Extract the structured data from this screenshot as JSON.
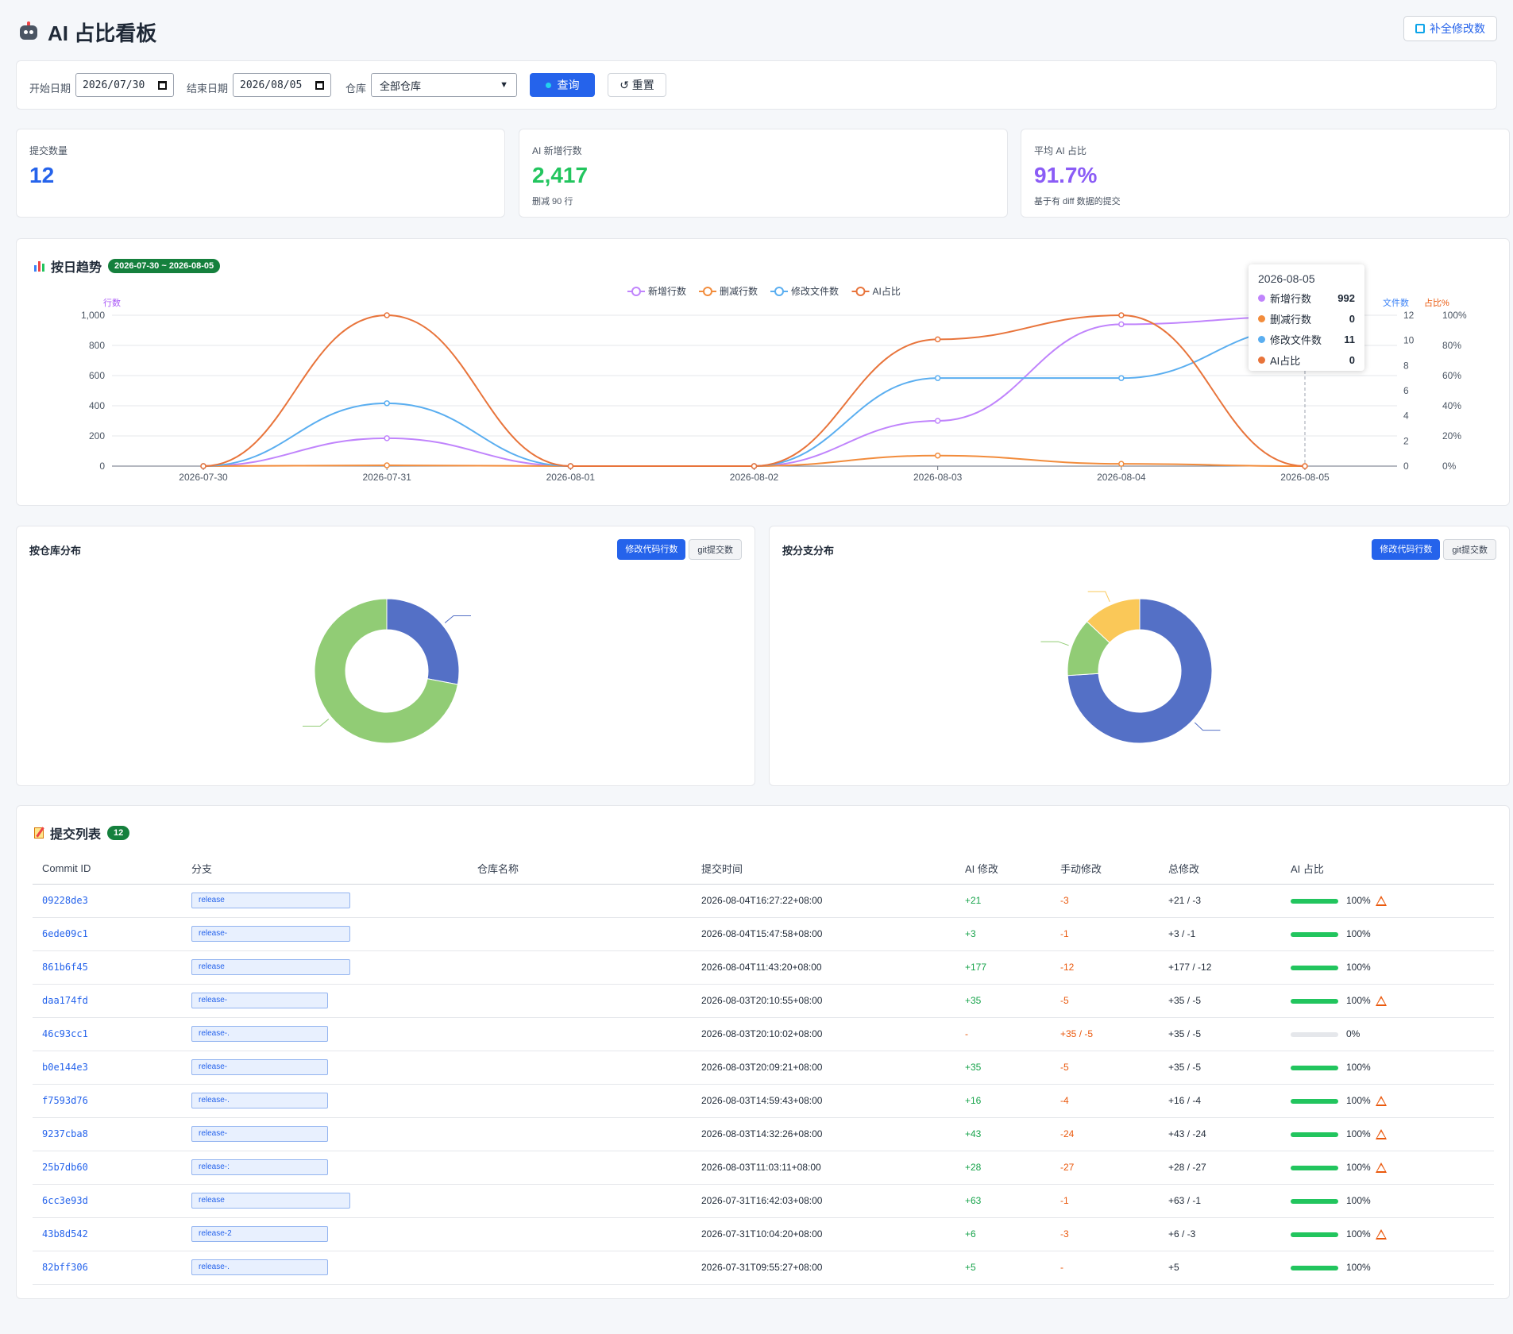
{
  "header": {
    "title": "AI 占比看板",
    "fill_button": "补全修改数"
  },
  "filter": {
    "start_label": "开始日期",
    "start_value": "2026/07/30",
    "end_label": "结束日期",
    "end_value": "2026/08/05",
    "repo_label": "仓库",
    "repo_value": "全部仓库",
    "query_button": "查询",
    "reset_button": "↺ 重置"
  },
  "stats": [
    {
      "label": "提交数量",
      "value": "12",
      "sub": "",
      "color": "#2563eb"
    },
    {
      "label": "AI 新增行数",
      "value": "2,417",
      "sub": "删减 90 行",
      "color": "#22c55e"
    },
    {
      "label": "平均 AI 占比",
      "value": "91.7%",
      "sub": "基于有 diff 数据的提交",
      "color": "#8b5cf6"
    }
  ],
  "trend": {
    "title": "按日趋势",
    "range_badge": "2026-07-30 ~ 2026-08-05",
    "chart_data": {
      "type": "line",
      "categories": [
        "2026-07-30",
        "2026-07-31",
        "2026-08-01",
        "2026-08-02",
        "2026-08-03",
        "2026-08-04",
        "2026-08-05"
      ],
      "series": [
        {
          "name": "新增行数",
          "axis": "lines",
          "color": "#c084fc",
          "values": [
            0,
            185,
            0,
            0,
            300,
            940,
            992
          ]
        },
        {
          "name": "删减行数",
          "axis": "lines",
          "color": "#f28c3c",
          "values": [
            0,
            5,
            0,
            0,
            70,
            15,
            0
          ]
        },
        {
          "name": "修改文件数",
          "axis": "files",
          "color": "#5aaef0",
          "values": [
            0,
            5,
            0,
            0,
            7,
            7,
            11
          ]
        },
        {
          "name": "AI占比",
          "axis": "ratio",
          "color": "#e8743b",
          "values": [
            0,
            100,
            0,
            0,
            84,
            100,
            0
          ]
        }
      ],
      "y_left": {
        "label": "行数",
        "ylim": [
          0,
          1000
        ],
        "ticks": [
          "0",
          "200",
          "400",
          "600",
          "800",
          "1,000"
        ]
      },
      "y_files": {
        "label": "文件数",
        "ylim": [
          0,
          12
        ],
        "ticks": [
          "0",
          "2",
          "4",
          "6",
          "8",
          "10",
          "12"
        ]
      },
      "y_ratio": {
        "label": "占比%",
        "ylim": [
          0,
          100
        ],
        "ticks": [
          "0%",
          "20%",
          "40%",
          "60%",
          "80%",
          "100%"
        ]
      },
      "legend": "top-center",
      "grid": true
    },
    "tooltip": {
      "title": "2026-08-05",
      "rows": [
        {
          "name": "新增行数",
          "value": "992",
          "color": "#c084fc"
        },
        {
          "name": "删减行数",
          "value": "0",
          "color": "#f28c3c"
        },
        {
          "name": "修改文件数",
          "value": "11",
          "color": "#5aaef0"
        },
        {
          "name": "AI占比",
          "value": "0",
          "color": "#e8743b"
        }
      ]
    }
  },
  "repo_dist": {
    "title": "按仓库分布",
    "seg_on": "修改代码行数",
    "seg_off": "git提交数",
    "chart_data": {
      "type": "pie",
      "slices": [
        {
          "value": 28,
          "color": "#5470c6"
        },
        {
          "value": 72,
          "color": "#91cc75"
        }
      ]
    }
  },
  "branch_dist": {
    "title": "按分支分布",
    "seg_on": "修改代码行数",
    "seg_off": "git提交数",
    "chart_data": {
      "type": "pie",
      "slices": [
        {
          "value": 74,
          "color": "#5470c6"
        },
        {
          "value": 13,
          "color": "#91cc75"
        },
        {
          "value": 13,
          "color": "#fac858"
        }
      ]
    }
  },
  "commits": {
    "title": "提交列表",
    "count": "12",
    "columns": [
      "Commit ID",
      "分支",
      "仓库名称",
      "提交时间",
      "AI 修改",
      "手动修改",
      "总修改",
      "AI 占比"
    ],
    "rows": [
      {
        "id": "09228de3",
        "branch": "release",
        "time": "2026-08-04T16:27:22+08:00",
        "ai": "+21",
        "manual": "-3",
        "total": "+21 / -3",
        "ratio": "100%",
        "warn": true,
        "w": 200
      },
      {
        "id": "6ede09c1",
        "branch": "release-",
        "time": "2026-08-04T15:47:58+08:00",
        "ai": "+3",
        "manual": "-1",
        "total": "+3 / -1",
        "ratio": "100%",
        "warn": false,
        "w": 200
      },
      {
        "id": "861b6f45",
        "branch": "release",
        "time": "2026-08-04T11:43:20+08:00",
        "ai": "+177",
        "manual": "-12",
        "total": "+177 / -12",
        "ratio": "100%",
        "warn": false,
        "w": 200
      },
      {
        "id": "daa174fd",
        "branch": "release-",
        "time": "2026-08-03T20:10:55+08:00",
        "ai": "+35",
        "manual": "-5",
        "total": "+35 / -5",
        "ratio": "100%",
        "warn": true,
        "w": 172
      },
      {
        "id": "46c93cc1",
        "branch": "release-.",
        "time": "2026-08-03T20:10:02+08:00",
        "ai": "-",
        "manual": "+35 / -5",
        "total": "+35 / -5",
        "ratio": "0%",
        "warn": false,
        "w": 172
      },
      {
        "id": "b0e144e3",
        "branch": "release-",
        "time": "2026-08-03T20:09:21+08:00",
        "ai": "+35",
        "manual": "-5",
        "total": "+35 / -5",
        "ratio": "100%",
        "warn": false,
        "w": 172
      },
      {
        "id": "f7593d76",
        "branch": "release-.",
        "time": "2026-08-03T14:59:43+08:00",
        "ai": "+16",
        "manual": "-4",
        "total": "+16 / -4",
        "ratio": "100%",
        "warn": true,
        "w": 172
      },
      {
        "id": "9237cba8",
        "branch": "release-",
        "time": "2026-08-03T14:32:26+08:00",
        "ai": "+43",
        "manual": "-24",
        "total": "+43 / -24",
        "ratio": "100%",
        "warn": true,
        "w": 172
      },
      {
        "id": "25b7db60",
        "branch": "release-:",
        "time": "2026-08-03T11:03:11+08:00",
        "ai": "+28",
        "manual": "-27",
        "total": "+28 / -27",
        "ratio": "100%",
        "warn": true,
        "w": 172
      },
      {
        "id": "6cc3e93d",
        "branch": "release",
        "time": "2026-07-31T16:42:03+08:00",
        "ai": "+63",
        "manual": "-1",
        "total": "+63 / -1",
        "ratio": "100%",
        "warn": false,
        "w": 200
      },
      {
        "id": "43b8d542",
        "branch": "release-2",
        "time": "2026-07-31T10:04:20+08:00",
        "ai": "+6",
        "manual": "-3",
        "total": "+6 / -3",
        "ratio": "100%",
        "warn": true,
        "w": 172
      },
      {
        "id": "82bff306",
        "branch": "release-.",
        "time": "2026-07-31T09:55:27+08:00",
        "ai": "+5",
        "manual": "-",
        "total": "+5",
        "ratio": "100%",
        "warn": false,
        "w": 172
      }
    ]
  }
}
